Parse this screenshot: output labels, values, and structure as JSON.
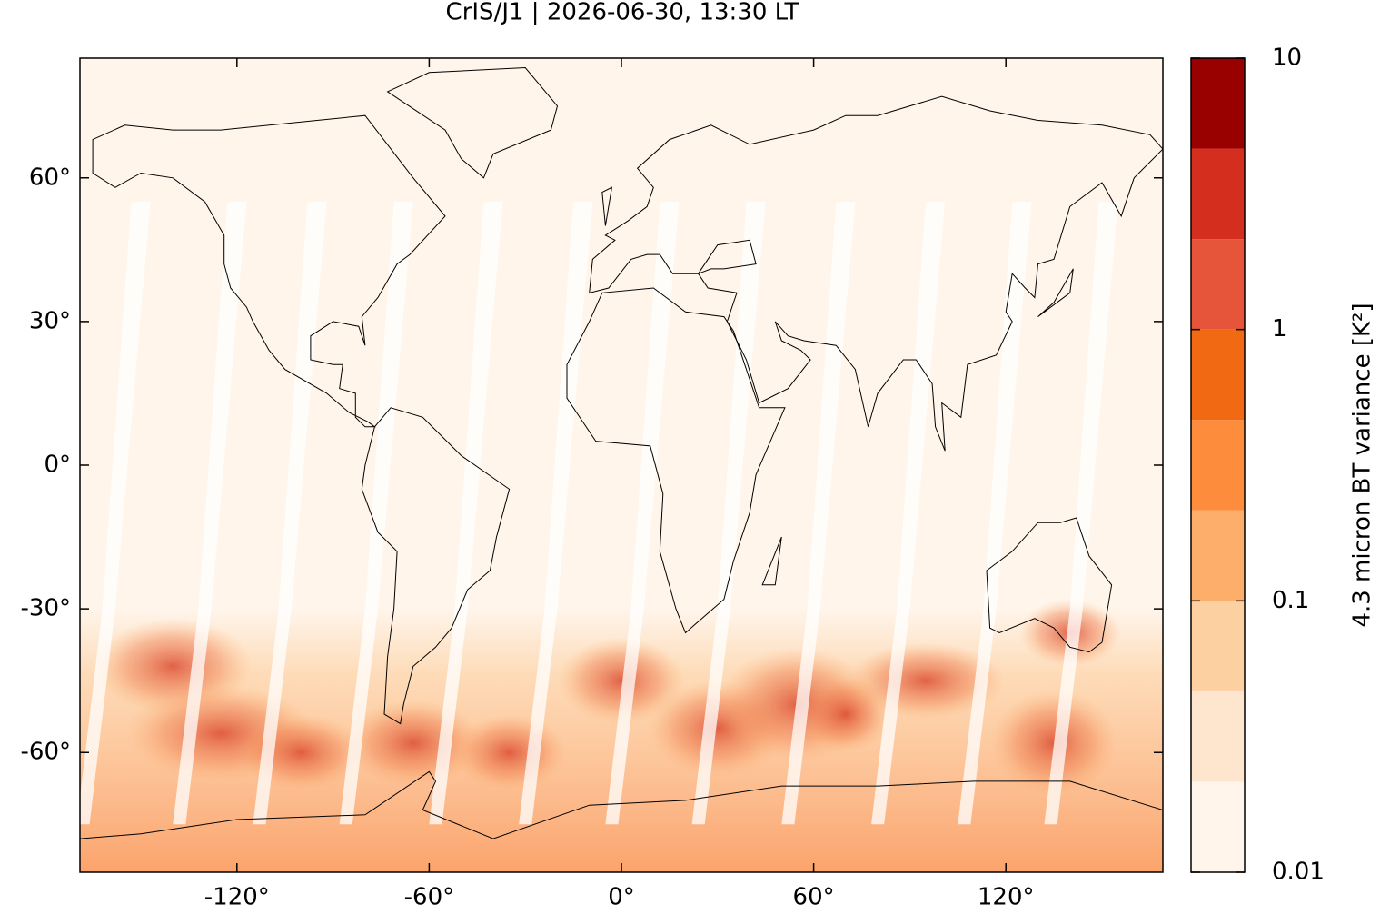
{
  "chart_data": {
    "type": "map",
    "title": "CrIS/J1 | 2026-06-30, 13:30 LT",
    "xlim": [
      -169,
      169
    ],
    "ylim": [
      -85,
      85
    ],
    "xticks": [
      {
        "value": -120,
        "label": "-120°"
      },
      {
        "value": -60,
        "label": "-60°"
      },
      {
        "value": 0,
        "label": "0°"
      },
      {
        "value": 60,
        "label": "60°"
      },
      {
        "value": 120,
        "label": "120°"
      }
    ],
    "yticks": [
      {
        "value": -60,
        "label": "-60°"
      },
      {
        "value": -30,
        "label": "-30°"
      },
      {
        "value": 0,
        "label": "0°"
      },
      {
        "value": 30,
        "label": "30°"
      },
      {
        "value": 60,
        "label": "60°"
      }
    ],
    "colorbar": {
      "label": "4.3 micron BT variance [K²]",
      "log": true,
      "lim": [
        0.01,
        10
      ],
      "ticks": [
        0.01,
        0.1,
        1,
        10
      ],
      "colors": [
        "#fff5eb",
        "#fee6ce",
        "#fdd0a2",
        "#fdae6b",
        "#fd8d3c",
        "#f16913",
        "#e6553a",
        "#d42f1e",
        "#990000"
      ]
    }
  }
}
